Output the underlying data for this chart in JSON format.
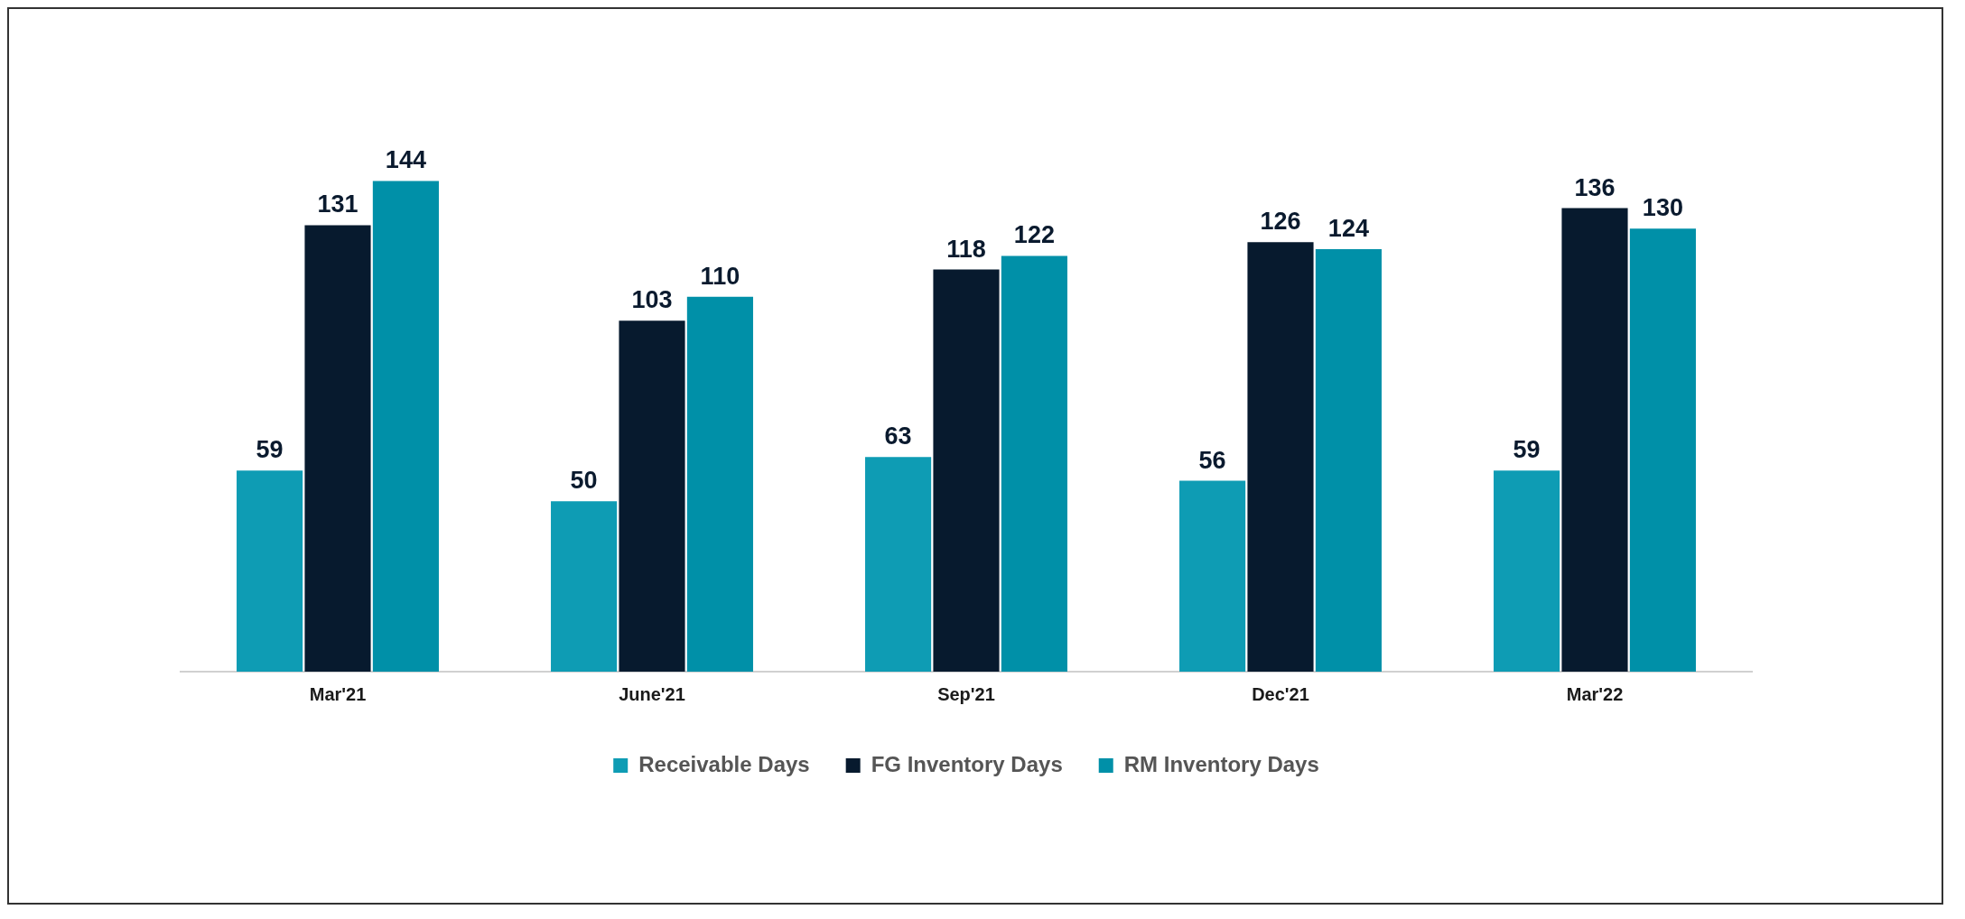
{
  "chart_data": {
    "type": "bar",
    "categories": [
      "Mar'21",
      "June'21",
      "Sep'21",
      "Dec'21",
      "Mar'22"
    ],
    "series": [
      {
        "name": "Receivable Days",
        "color": "#0e9cb4",
        "values": [
          59,
          50,
          63,
          56,
          59
        ]
      },
      {
        "name": "FG Inventory Days",
        "color": "#071a2e",
        "values": [
          131,
          103,
          118,
          126,
          136
        ]
      },
      {
        "name": "RM Inventory Days",
        "color": "#0090a8",
        "values": [
          144,
          110,
          122,
          124,
          130
        ]
      }
    ],
    "data_labels": true,
    "grid": false,
    "legend": "bottom"
  }
}
